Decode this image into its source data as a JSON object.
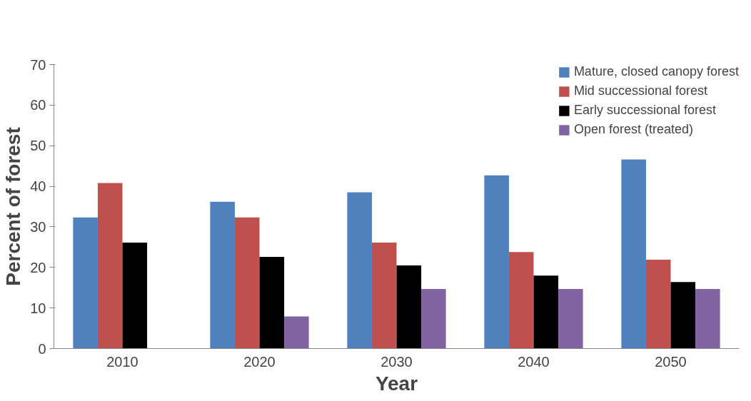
{
  "chart_data": {
    "type": "bar",
    "xlabel": "Year",
    "ylabel": "Percent of forest",
    "categories": [
      "2010",
      "2020",
      "2030",
      "2040",
      "2050"
    ],
    "series": [
      {
        "name": "Mature, closed canopy forest",
        "color": "#4f81bd",
        "values": [
          32.3,
          36.2,
          38.5,
          42.7,
          46.6
        ]
      },
      {
        "name": "Mid successional forest",
        "color": "#c0504d",
        "values": [
          40.8,
          32.3,
          26.1,
          23.8,
          21.9
        ]
      },
      {
        "name": "Early successional forest",
        "color": "#000000",
        "values": [
          26.1,
          22.6,
          20.5,
          18.0,
          16.4
        ]
      },
      {
        "name": "Open forest (treated)",
        "color": "#8064a2",
        "values": [
          null,
          7.9,
          14.7,
          14.7,
          14.7
        ]
      }
    ],
    "ylim": [
      0,
      70
    ],
    "yticks": [
      0,
      10,
      20,
      30,
      40,
      50,
      60,
      70
    ],
    "grid": false,
    "legend": "top right"
  }
}
